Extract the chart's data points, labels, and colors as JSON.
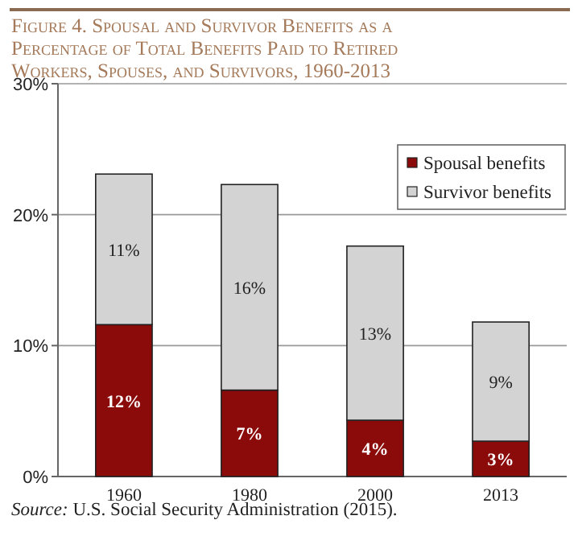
{
  "chart_data": {
    "type": "bar",
    "stacked": true,
    "title": "Figure 4. Spousal and Survivor Benefits as a Percentage of Total Benefits Paid to Retired Workers, Spouses, and Survivors, 1960-2013",
    "categories": [
      "1960",
      "1980",
      "2000",
      "2013"
    ],
    "series": [
      {
        "name": "Spousal benefits",
        "color": "#8b0a0a",
        "values": [
          11.6,
          6.6,
          4.3,
          2.7
        ],
        "value_labels": [
          "12%",
          "7%",
          "4%",
          "3%"
        ]
      },
      {
        "name": "Survivor benefits",
        "color": "#d3d3d3",
        "values": [
          11.5,
          15.7,
          13.3,
          9.1
        ],
        "value_labels": [
          "11%",
          "16%",
          "13%",
          "9%"
        ]
      }
    ],
    "ylim": [
      0,
      30
    ],
    "yticks": [
      {
        "value": 0,
        "label": "0%"
      },
      {
        "value": 10,
        "label": "10%"
      },
      {
        "value": 20,
        "label": "20%"
      },
      {
        "value": 30,
        "label": "30%"
      }
    ],
    "grid": "y",
    "legend": "top right",
    "annotations": [
      "Source: U.S. Social Security Administration (2015)."
    ]
  }
}
